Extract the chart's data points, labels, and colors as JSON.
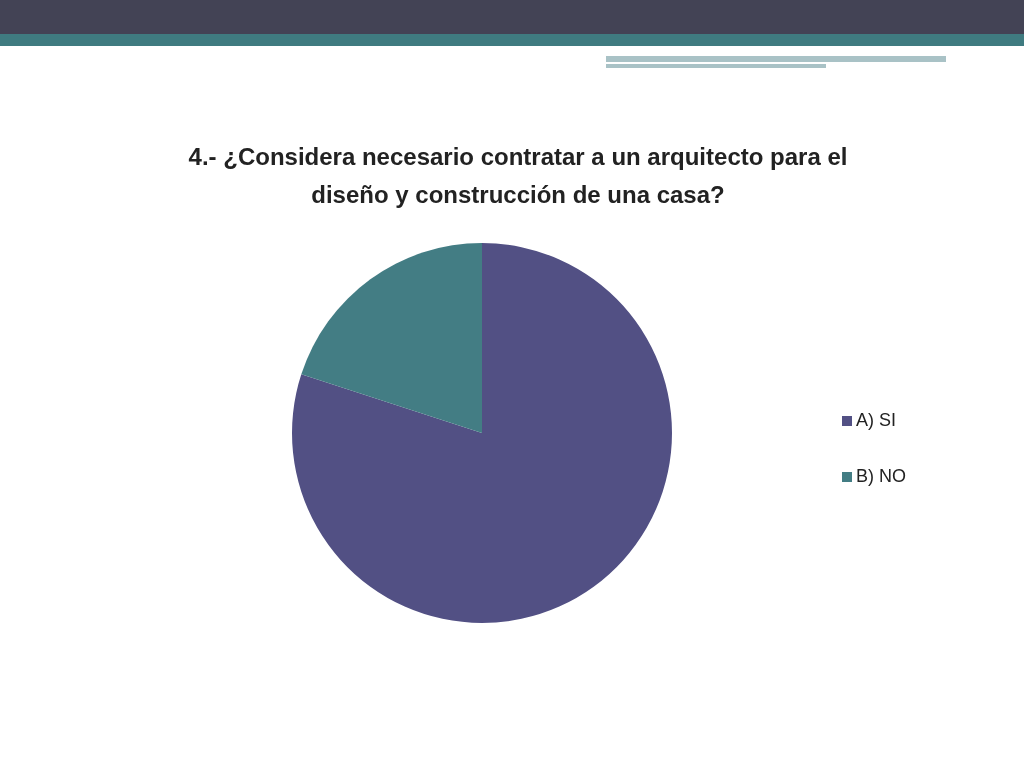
{
  "chart_data": {
    "type": "pie",
    "title": "4.- ¿Considera necesario contratar a un arquitecto para el diseño y construcción de una casa?",
    "categories": [
      "A) SI",
      "B) NO"
    ],
    "values": [
      80,
      20
    ],
    "colors": [
      "#525084",
      "#437d84"
    ],
    "legend": "right"
  }
}
